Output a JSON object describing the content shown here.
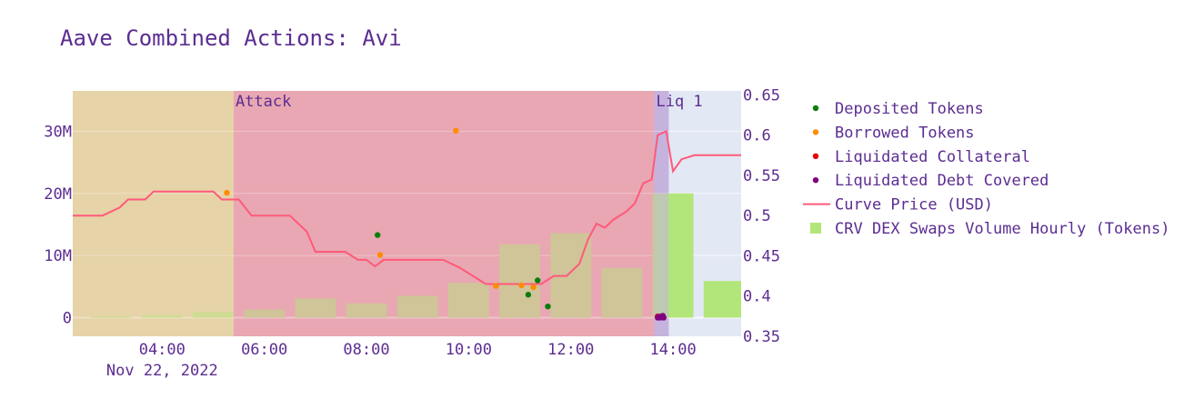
{
  "chart_data": {
    "title": "Aave Combined Actions: Avi",
    "x_axis": {
      "ticks": [
        "04:00",
        "06:00",
        "08:00",
        "10:00",
        "12:00",
        "14:00"
      ],
      "date_label": "Nov 22, 2022",
      "range": [
        "02:15",
        "15:20"
      ]
    },
    "y_axis_left": {
      "ticks": [
        "0",
        "10M",
        "20M",
        "30M"
      ],
      "range": [
        -3000000,
        36500000
      ]
    },
    "y_axis_right": {
      "ticks": [
        "0.35",
        "0.4",
        "0.45",
        "0.5",
        "0.55",
        "0.6",
        "0.65"
      ],
      "range": [
        0.35,
        0.655
      ]
    },
    "bands": [
      {
        "label": "",
        "start": "02:15",
        "end": "05:24",
        "color": "#e6d3a8"
      },
      {
        "label": "Attack",
        "start": "05:24",
        "end": "13:38",
        "color": "#e8a7b2"
      },
      {
        "label": "Liq 1",
        "start": "13:38",
        "end": "13:55",
        "color": "#c5b3de"
      },
      {
        "label": "",
        "start": "13:55",
        "end": "15:20",
        "color": "#e2e8f4"
      }
    ],
    "series": [
      {
        "name": "Deposited Tokens",
        "type": "scatter",
        "color": "#0a7d0a",
        "points": [
          [
            "08:13",
            13300000
          ],
          [
            "11:10",
            3700000
          ],
          [
            "11:21",
            6000000
          ],
          [
            "11:33",
            1800000
          ]
        ]
      },
      {
        "name": "Borrowed Tokens",
        "type": "scatter",
        "color": "#ff8c00",
        "points": [
          [
            "05:16",
            20100000
          ],
          [
            "08:16",
            10100000
          ],
          [
            "09:45",
            30100000
          ],
          [
            "10:32",
            5100000
          ],
          [
            "11:02",
            5200000
          ],
          [
            "11:16",
            4900000
          ]
        ]
      },
      {
        "name": "Liquidated Collateral",
        "type": "scatter",
        "color": "#e8000b",
        "points": [
          [
            "13:42",
            200000
          ]
        ]
      },
      {
        "name": "Liquidated Debt Covered",
        "type": "scatter",
        "color": "#800080",
        "points": [
          [
            "13:42",
            0
          ],
          [
            "13:43",
            100000
          ],
          [
            "13:45",
            0
          ],
          [
            "13:46",
            200000
          ],
          [
            "13:47",
            100000
          ],
          [
            "13:48",
            300000
          ],
          [
            "13:49",
            0
          ]
        ]
      },
      {
        "name": "Curve Price (USD)",
        "type": "line",
        "axis": "right",
        "color": "#ff5a7a",
        "points": [
          [
            "02:15",
            0.5
          ],
          [
            "02:50",
            0.5
          ],
          [
            "03:10",
            0.51
          ],
          [
            "03:20",
            0.52
          ],
          [
            "03:40",
            0.52
          ],
          [
            "03:50",
            0.53
          ],
          [
            "04:40",
            0.53
          ],
          [
            "05:00",
            0.53
          ],
          [
            "05:10",
            0.52
          ],
          [
            "05:30",
            0.52
          ],
          [
            "05:45",
            0.5
          ],
          [
            "06:30",
            0.5
          ],
          [
            "06:40",
            0.49
          ],
          [
            "06:50",
            0.48
          ],
          [
            "07:00",
            0.455
          ],
          [
            "07:35",
            0.455
          ],
          [
            "07:50",
            0.445
          ],
          [
            "08:00",
            0.445
          ],
          [
            "08:10",
            0.437
          ],
          [
            "08:20",
            0.445
          ],
          [
            "09:05",
            0.445
          ],
          [
            "09:30",
            0.445
          ],
          [
            "09:50",
            0.435
          ],
          [
            "10:05",
            0.425
          ],
          [
            "10:20",
            0.415
          ],
          [
            "11:25",
            0.415
          ],
          [
            "11:40",
            0.425
          ],
          [
            "11:55",
            0.425
          ],
          [
            "12:10",
            0.44
          ],
          [
            "12:20",
            0.47
          ],
          [
            "12:30",
            0.49
          ],
          [
            "12:40",
            0.485
          ],
          [
            "12:50",
            0.495
          ],
          [
            "13:05",
            0.505
          ],
          [
            "13:15",
            0.515
          ],
          [
            "13:25",
            0.54
          ],
          [
            "13:35",
            0.545
          ],
          [
            "13:42",
            0.6
          ],
          [
            "13:52",
            0.605
          ],
          [
            "14:00",
            0.555
          ],
          [
            "14:10",
            0.57
          ],
          [
            "14:25",
            0.575
          ],
          [
            "15:20",
            0.575
          ]
        ]
      },
      {
        "name": "CRV DEX Swaps Volume Hourly (Tokens)",
        "type": "bar",
        "color": "#b3e67a",
        "points": [
          [
            "03:00",
            200000
          ],
          [
            "04:00",
            400000
          ],
          [
            "05:00",
            900000
          ],
          [
            "06:00",
            1300000
          ],
          [
            "07:00",
            3100000
          ],
          [
            "08:00",
            2300000
          ],
          [
            "09:00",
            3500000
          ],
          [
            "10:00",
            5600000
          ],
          [
            "11:00",
            11800000
          ],
          [
            "12:00",
            13600000
          ],
          [
            "13:00",
            8000000
          ],
          [
            "14:00",
            20000000
          ],
          [
            "15:00",
            5900000
          ]
        ]
      }
    ]
  }
}
